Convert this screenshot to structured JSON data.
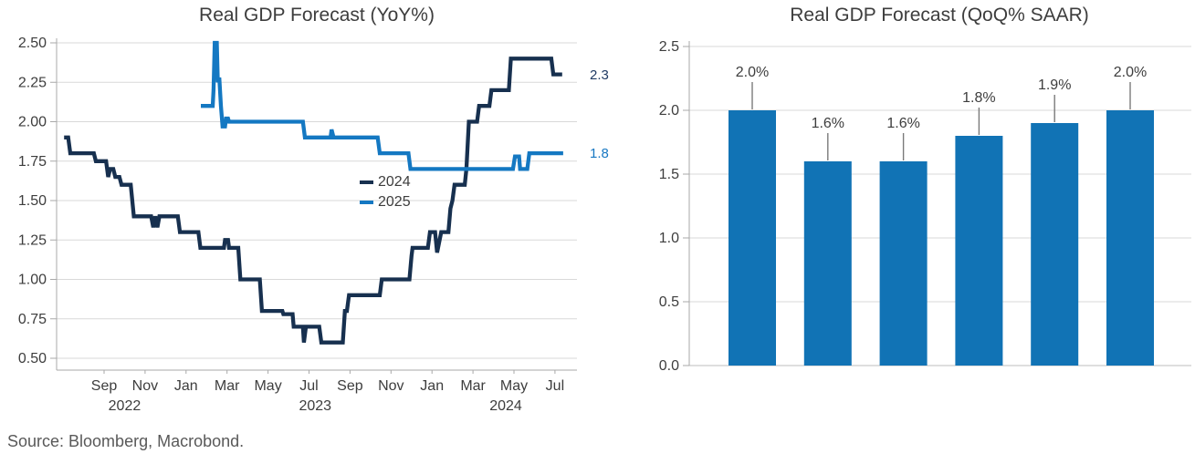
{
  "source": "Source: Bloomberg, Macrobond.",
  "colors": {
    "navy_line": "#17304f",
    "blue_line": "#1478c2",
    "bar_blue": "#1173b5",
    "gridline": "#d9d9d9",
    "axis": "#a9a9a9",
    "tick_text": "#3d3d3d",
    "leader_line": "#7a7a7a",
    "end_label_navy": "#1f3a63",
    "end_label_blue": "#1777c2"
  },
  "chart_data": [
    {
      "type": "line",
      "title": "Real GDP Forecast (YoY%)",
      "x_unit": "months since 2022-07-01",
      "xlim": [
        -0.35,
        25.1
      ],
      "ylim": [
        0.44,
        2.56
      ],
      "grid": true,
      "legend_position": "center-right",
      "y_axis": {
        "ticks": [
          {
            "v": 2.5,
            "label": "2.50"
          },
          {
            "v": 2.25,
            "label": "2.25"
          },
          {
            "v": 2.0,
            "label": "2.00"
          },
          {
            "v": 1.75,
            "label": "1.75"
          },
          {
            "v": 1.5,
            "label": "1.50"
          },
          {
            "v": 1.25,
            "label": "1.25"
          },
          {
            "v": 1.0,
            "label": "1.00"
          },
          {
            "v": 0.75,
            "label": "0.75"
          },
          {
            "v": 0.5,
            "label": "0.50"
          }
        ]
      },
      "x_axis": {
        "ticks": [
          {
            "t": 2,
            "label": "Sep"
          },
          {
            "t": 4,
            "label": "Nov"
          },
          {
            "t": 6,
            "label": "Jan"
          },
          {
            "t": 8,
            "label": "Mar"
          },
          {
            "t": 10,
            "label": "May"
          },
          {
            "t": 12,
            "label": "Jul"
          },
          {
            "t": 14,
            "label": "Sep"
          },
          {
            "t": 16,
            "label": "Nov"
          },
          {
            "t": 18,
            "label": "Jan"
          },
          {
            "t": 20,
            "label": "Mar"
          },
          {
            "t": 22,
            "label": "May"
          },
          {
            "t": 24,
            "label": "Jul"
          }
        ],
        "year_labels": [
          {
            "t": 3.0,
            "label": "2022"
          },
          {
            "t": 12.3,
            "label": "2023"
          },
          {
            "t": 21.6,
            "label": "2024"
          }
        ]
      },
      "series": [
        {
          "name": "2024",
          "color": "#17304f",
          "points": [
            [
              0.05,
              1.9
            ],
            [
              0.25,
              1.9
            ],
            [
              0.35,
              1.8
            ],
            [
              1.5,
              1.8
            ],
            [
              1.6,
              1.75
            ],
            [
              2.1,
              1.75
            ],
            [
              2.2,
              1.65
            ],
            [
              2.3,
              1.7
            ],
            [
              2.45,
              1.7
            ],
            [
              2.55,
              1.65
            ],
            [
              2.75,
              1.65
            ],
            [
              2.85,
              1.6
            ],
            [
              3.3,
              1.6
            ],
            [
              3.45,
              1.4
            ],
            [
              4.3,
              1.4
            ],
            [
              4.4,
              1.33
            ],
            [
              4.5,
              1.4
            ],
            [
              4.6,
              1.33
            ],
            [
              4.7,
              1.4
            ],
            [
              5.6,
              1.4
            ],
            [
              5.7,
              1.3
            ],
            [
              6.6,
              1.3
            ],
            [
              6.7,
              1.2
            ],
            [
              7.85,
              1.2
            ],
            [
              7.9,
              1.25
            ],
            [
              8.05,
              1.25
            ],
            [
              8.1,
              1.2
            ],
            [
              8.55,
              1.2
            ],
            [
              8.65,
              1.0
            ],
            [
              9.6,
              1.0
            ],
            [
              9.7,
              0.8
            ],
            [
              10.7,
              0.8
            ],
            [
              10.75,
              0.78
            ],
            [
              11.2,
              0.78
            ],
            [
              11.25,
              0.7
            ],
            [
              11.7,
              0.7
            ],
            [
              11.75,
              0.6
            ],
            [
              11.85,
              0.7
            ],
            [
              12.5,
              0.7
            ],
            [
              12.6,
              0.6
            ],
            [
              13.65,
              0.6
            ],
            [
              13.75,
              0.8
            ],
            [
              13.85,
              0.8
            ],
            [
              13.95,
              0.9
            ],
            [
              15.45,
              0.9
            ],
            [
              15.55,
              1.0
            ],
            [
              16.9,
              1.0
            ],
            [
              17.0,
              1.15
            ],
            [
              17.05,
              1.2
            ],
            [
              17.8,
              1.2
            ],
            [
              17.9,
              1.3
            ],
            [
              18.15,
              1.3
            ],
            [
              18.25,
              1.17
            ],
            [
              18.45,
              1.3
            ],
            [
              18.8,
              1.3
            ],
            [
              18.9,
              1.45
            ],
            [
              19.0,
              1.5
            ],
            [
              19.1,
              1.6
            ],
            [
              19.6,
              1.6
            ],
            [
              19.68,
              1.7
            ],
            [
              19.8,
              2.0
            ],
            [
              20.2,
              2.0
            ],
            [
              20.3,
              2.1
            ],
            [
              20.8,
              2.1
            ],
            [
              20.9,
              2.2
            ],
            [
              21.75,
              2.2
            ],
            [
              21.85,
              2.4
            ],
            [
              23.82,
              2.4
            ],
            [
              23.92,
              2.3
            ],
            [
              24.35,
              2.3
            ]
          ]
        },
        {
          "name": "2025",
          "color": "#1478c2",
          "points": [
            [
              6.72,
              2.1
            ],
            [
              7.3,
              2.1
            ],
            [
              7.34,
              2.2
            ],
            [
              7.4,
              2.5
            ],
            [
              7.5,
              2.5
            ],
            [
              7.55,
              2.25
            ],
            [
              7.62,
              2.28
            ],
            [
              7.7,
              2.1
            ],
            [
              7.78,
              1.97
            ],
            [
              7.9,
              1.97
            ],
            [
              7.95,
              2.02
            ],
            [
              8.05,
              2.02
            ],
            [
              8.1,
              2.0
            ],
            [
              11.7,
              2.0
            ],
            [
              11.8,
              1.9
            ],
            [
              13.05,
              1.9
            ],
            [
              13.1,
              1.95
            ],
            [
              13.2,
              1.9
            ],
            [
              15.35,
              1.9
            ],
            [
              15.45,
              1.8
            ],
            [
              16.85,
              1.8
            ],
            [
              16.95,
              1.7
            ],
            [
              21.95,
              1.7
            ],
            [
              22.05,
              1.78
            ],
            [
              22.25,
              1.78
            ],
            [
              22.3,
              1.7
            ],
            [
              22.65,
              1.7
            ],
            [
              22.75,
              1.8
            ],
            [
              24.4,
              1.8
            ]
          ]
        }
      ],
      "end_labels": [
        {
          "text": "2.3",
          "v": 2.3,
          "series": "2024"
        },
        {
          "text": "1.8",
          "v": 1.8,
          "series": "2025"
        }
      ]
    },
    {
      "type": "bar",
      "title": "Real GDP Forecast (QoQ% SAAR)",
      "values": [
        2.0,
        1.6,
        1.6,
        1.8,
        1.9,
        2.0
      ],
      "labels": [
        "2.0%",
        "1.6%",
        "1.6%",
        "1.8%",
        "1.9%",
        "2.0%"
      ],
      "bar_color": "#1173b5",
      "ylim": [
        0,
        2.5
      ],
      "grid": true,
      "y_axis": {
        "ticks": [
          {
            "v": 2.5,
            "label": "2.5"
          },
          {
            "v": 2.0,
            "label": "2.0"
          },
          {
            "v": 1.5,
            "label": "1.5"
          },
          {
            "v": 1.0,
            "label": "1.0"
          },
          {
            "v": 0.5,
            "label": "0.5"
          },
          {
            "v": 0.0,
            "label": "0.0"
          }
        ]
      }
    }
  ]
}
